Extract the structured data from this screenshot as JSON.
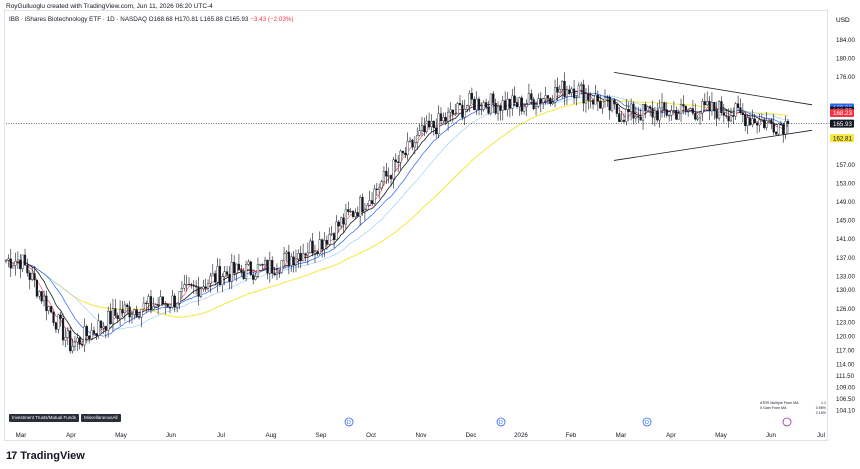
{
  "header": {
    "creator": "RoyGulluoglu created with TradingView.com, Jun 11, 2026 06:20 UTC-4",
    "symbol_text": "IBB · iShares Biotechnology ETF · 1D · NASDAQ",
    "ohlc_text": "O168.68 H170.81 L165.88 C165.93",
    "change_text": "−3.43 (−2.03%)"
  },
  "footer": {
    "brand": "TradingView",
    "logo_mark": "17"
  },
  "badges": [
    "Investment Trusts/Mutual Funds",
    "MiscellaneousAll"
  ],
  "legend": [
    {
      "label": "ATRS Multiple From MA",
      "value": "1.1"
    },
    {
      "label": "0 Gain From MA",
      "value": "0.96%"
    },
    {
      "label": "",
      "value": "2.15%"
    }
  ],
  "chart_data": {
    "type": "candlestick",
    "currency": "USD",
    "ylim": [
      102.0,
      187.0
    ],
    "y_ticks": [
      184.0,
      180.0,
      176.0,
      157.0,
      153.0,
      149.0,
      145.0,
      141.0,
      137.0,
      133.0,
      130.0,
      126.0,
      123.0,
      120.0,
      117.0,
      114.0,
      111.5,
      109.0,
      106.5,
      104.1
    ],
    "x_ticks": [
      "Mar",
      "Apr",
      "May",
      "Jun",
      "Jul",
      "Aug",
      "Sep",
      "Oct",
      "Nov",
      "Dec",
      "2026",
      "Feb",
      "Mar",
      "Apr",
      "May",
      "Jun",
      "Jul"
    ],
    "price_tags": [
      {
        "value": 169.52,
        "color": "#b2b5be",
        "text_color": "#131722"
      },
      {
        "value": 169.3,
        "color": "#2962ff",
        "text_color": "#ffffff"
      },
      {
        "value": 168.75,
        "color": "#131722",
        "text_color": "#ffffff"
      },
      {
        "value": 168.23,
        "color": "#f23645",
        "text_color": "#ffffff"
      },
      {
        "value": 165.93,
        "color": "#131722",
        "text_color": "#ffffff"
      },
      {
        "value": 162.81,
        "color": "#f5e73f",
        "text_color": "#131722"
      }
    ],
    "last_close": 165.93,
    "monthly_closes": [
      {
        "month": "Mar",
        "close": 136.5
      },
      {
        "month": "Apr",
        "close": 118.0
      },
      {
        "month": "May",
        "close": 125.5
      },
      {
        "month": "Jun",
        "close": 127.5
      },
      {
        "month": "Jul",
        "close": 133.5
      },
      {
        "month": "Aug",
        "close": 135.0
      },
      {
        "month": "Sep",
        "close": 140.5
      },
      {
        "month": "Oct",
        "close": 150.5
      },
      {
        "month": "Nov",
        "close": 163.5
      },
      {
        "month": "Dec",
        "close": 170.5
      },
      {
        "month": "2026",
        "close": 170.0
      },
      {
        "month": "Feb",
        "close": 174.0
      },
      {
        "month": "Mar",
        "close": 168.0
      },
      {
        "month": "Apr",
        "close": 168.5
      },
      {
        "month": "May",
        "close": 169.0
      },
      {
        "month": "Jun",
        "close": 165.93
      }
    ],
    "trendlines": [
      {
        "name": "upper",
        "points": [
          {
            "date": "Mar 2026",
            "value": 177.0
          },
          {
            "date": "Jul 2026",
            "value": 170.0
          }
        ]
      },
      {
        "name": "lower",
        "points": [
          {
            "date": "Mar 2026",
            "value": 158.0
          },
          {
            "date": "Jul 2026",
            "value": 164.5
          }
        ]
      }
    ],
    "event_markers": [
      "D",
      "D",
      "D"
    ],
    "colors": {
      "up": "#131722",
      "down": "#131722",
      "ma_red": "#f23645",
      "ma_black": "#131722",
      "ma_blue": "#2962ff",
      "ma_yellow": "#f5e73f",
      "ma_lightblue": "#90caf9"
    }
  }
}
